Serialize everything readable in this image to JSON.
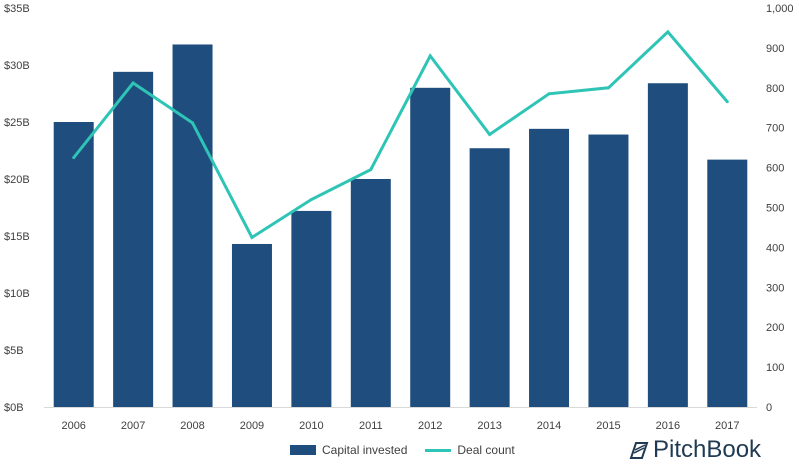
{
  "chart_data": {
    "type": "bar",
    "categories": [
      "2006",
      "2007",
      "2008",
      "2009",
      "2010",
      "2011",
      "2012",
      "2013",
      "2014",
      "2015",
      "2016",
      "2017"
    ],
    "series": [
      {
        "name": "Capital invested",
        "kind": "bar",
        "axis": "left",
        "values": [
          25.0,
          29.4,
          31.8,
          14.3,
          17.2,
          20.0,
          28.0,
          22.7,
          24.4,
          23.9,
          28.4,
          21.7
        ]
      },
      {
        "name": "Deal count",
        "kind": "line",
        "axis": "right",
        "values": [
          625,
          812,
          712,
          425,
          520,
          595,
          880,
          683,
          785,
          800,
          940,
          765
        ]
      }
    ],
    "y_left": {
      "ylim": [
        0,
        35
      ],
      "ticks": [
        0,
        5,
        10,
        15,
        20,
        25,
        30,
        35
      ],
      "tick_labels": [
        "$0B",
        "$5B",
        "$10B",
        "$15B",
        "$20B",
        "$25B",
        "$30B",
        "$35B"
      ]
    },
    "y_right": {
      "ylim": [
        0,
        1000
      ],
      "ticks": [
        0,
        100,
        200,
        300,
        400,
        500,
        600,
        700,
        800,
        900,
        1000
      ],
      "tick_labels": [
        "0",
        "100",
        "200",
        "300",
        "400",
        "500",
        "600",
        "700",
        "800",
        "900",
        "1,000"
      ]
    },
    "grid": false,
    "legend_position": "bottom-center",
    "colors": {
      "bar": "#1f4e7e",
      "line": "#2ec4b6",
      "text": "#404040",
      "axis": "#d9d9d9"
    }
  },
  "legend": {
    "bar_label": "Capital invested",
    "line_label": "Deal count"
  },
  "brand": {
    "name": "PitchBook"
  }
}
